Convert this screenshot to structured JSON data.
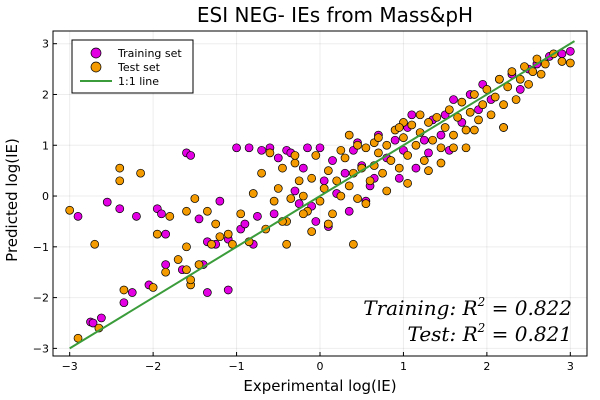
{
  "chart_data": {
    "type": "scatter",
    "title": "ESI NEG- IEs from Mass&pH",
    "xlabel": "Experimental log(IE)",
    "ylabel": "Predicted log(IE)",
    "xlim": [
      -3.2,
      3.2
    ],
    "ylim": [
      -3.15,
      3.25
    ],
    "xticks": [
      -3,
      -2,
      -1,
      0,
      1,
      2,
      3
    ],
    "yticks": [
      -3,
      -2,
      -1,
      0,
      1,
      2,
      3
    ],
    "tick_labels_x": [
      "−3",
      "−2",
      "−1",
      "0",
      "1",
      "2",
      "3"
    ],
    "tick_labels_y": [
      "−3",
      "−2",
      "−1",
      "0",
      "1",
      "2",
      "3"
    ],
    "grid": true,
    "legend_position": "top-left",
    "colors": {
      "training": "#e300e3",
      "test": "#f39b00",
      "line": "#3a9c3a"
    },
    "series": [
      {
        "name": "Training set",
        "kind": "points",
        "points": [
          [
            -2.9,
            -0.4
          ],
          [
            -2.75,
            -2.48
          ],
          [
            -2.72,
            -2.5
          ],
          [
            -2.62,
            -2.4
          ],
          [
            -2.55,
            -0.12
          ],
          [
            -2.4,
            -0.25
          ],
          [
            -2.35,
            -2.1
          ],
          [
            -2.25,
            -1.9
          ],
          [
            -2.2,
            -0.4
          ],
          [
            -2.05,
            -1.75
          ],
          [
            -1.95,
            -0.25
          ],
          [
            -1.9,
            -0.35
          ],
          [
            -1.85,
            -0.75
          ],
          [
            -1.85,
            -1.35
          ],
          [
            -1.65,
            -1.45
          ],
          [
            -1.6,
            0.85
          ],
          [
            -1.55,
            0.8
          ],
          [
            -1.45,
            -0.45
          ],
          [
            -1.4,
            -1.35
          ],
          [
            -1.35,
            -1.9
          ],
          [
            -1.35,
            -0.9
          ],
          [
            -1.25,
            -0.95
          ],
          [
            -1.2,
            -0.1
          ],
          [
            -1.1,
            -1.85
          ],
          [
            -1.1,
            -0.85
          ],
          [
            -1.0,
            0.95
          ],
          [
            -0.95,
            -0.65
          ],
          [
            -0.9,
            -0.55
          ],
          [
            -0.85,
            0.95
          ],
          [
            -0.8,
            -0.95
          ],
          [
            -0.75,
            -0.4
          ],
          [
            -0.7,
            0.9
          ],
          [
            -0.6,
            0.95
          ],
          [
            -0.55,
            -0.35
          ],
          [
            -0.5,
            0.75
          ],
          [
            -0.4,
            0.9
          ],
          [
            -0.35,
            0.85
          ],
          [
            -0.3,
            0.1
          ],
          [
            -0.25,
            -0.15
          ],
          [
            -0.15,
            0.95
          ],
          [
            -0.1,
            -0.2
          ],
          [
            -0.05,
            -0.5
          ],
          [
            0.0,
            0.95
          ],
          [
            0.05,
            0.3
          ],
          [
            0.1,
            -0.6
          ],
          [
            0.2,
            0.05
          ],
          [
            0.3,
            0.45
          ],
          [
            0.35,
            -0.3
          ],
          [
            0.4,
            0.9
          ],
          [
            0.45,
            1.05
          ],
          [
            0.5,
            0.6
          ],
          [
            0.55,
            -0.1
          ],
          [
            0.65,
            0.35
          ],
          [
            0.7,
            1.2
          ],
          [
            0.8,
            0.75
          ],
          [
            0.9,
            1.1
          ],
          [
            1.0,
            0.9
          ],
          [
            1.05,
            1.35
          ],
          [
            1.15,
            0.55
          ],
          [
            1.25,
            1.1
          ],
          [
            1.3,
            0.85
          ],
          [
            1.35,
            1.5
          ],
          [
            1.45,
            1.2
          ],
          [
            1.5,
            1.6
          ],
          [
            1.55,
            0.9
          ],
          [
            1.6,
            1.9
          ],
          [
            1.7,
            1.45
          ],
          [
            1.8,
            2.0
          ],
          [
            1.9,
            1.7
          ],
          [
            1.95,
            2.2
          ],
          [
            2.05,
            1.9
          ],
          [
            2.15,
            2.3
          ],
          [
            2.2,
            1.35
          ],
          [
            2.3,
            2.4
          ],
          [
            2.4,
            2.1
          ],
          [
            2.5,
            2.5
          ],
          [
            2.6,
            2.6
          ],
          [
            2.75,
            2.75
          ],
          [
            2.9,
            2.8
          ],
          [
            3.0,
            2.85
          ],
          [
            -0.2,
            0.55
          ],
          [
            0.15,
            0.7
          ],
          [
            0.6,
            0.2
          ],
          [
            0.95,
            0.35
          ],
          [
            1.1,
            1.6
          ]
        ]
      },
      {
        "name": "Test set",
        "kind": "points",
        "points": [
          [
            -3.0,
            -0.28
          ],
          [
            -2.9,
            -2.8
          ],
          [
            -2.7,
            -0.95
          ],
          [
            -2.65,
            -2.6
          ],
          [
            -2.4,
            0.55
          ],
          [
            -2.4,
            0.3
          ],
          [
            -2.35,
            -1.85
          ],
          [
            -2.15,
            0.45
          ],
          [
            -2.0,
            -1.8
          ],
          [
            -1.95,
            -0.75
          ],
          [
            -1.85,
            -1.5
          ],
          [
            -1.8,
            -0.4
          ],
          [
            -1.7,
            -1.25
          ],
          [
            -1.6,
            -1.0
          ],
          [
            -1.6,
            -1.45
          ],
          [
            -1.6,
            -0.3
          ],
          [
            -1.55,
            -1.75
          ],
          [
            -1.55,
            -1.65
          ],
          [
            -1.5,
            -0.05
          ],
          [
            -1.45,
            -1.35
          ],
          [
            -1.35,
            -0.3
          ],
          [
            -1.3,
            -0.95
          ],
          [
            -1.25,
            -0.55
          ],
          [
            -1.2,
            -0.8
          ],
          [
            -1.1,
            -0.75
          ],
          [
            -1.05,
            -0.95
          ],
          [
            -0.95,
            -0.35
          ],
          [
            -0.85,
            -0.9
          ],
          [
            -0.8,
            0.05
          ],
          [
            -0.7,
            0.45
          ],
          [
            -0.65,
            -0.65
          ],
          [
            -0.55,
            -0.1
          ],
          [
            -0.5,
            0.15
          ],
          [
            -0.45,
            0.55
          ],
          [
            -0.4,
            -0.5
          ],
          [
            -0.35,
            -0.05
          ],
          [
            -0.3,
            0.65
          ],
          [
            -0.25,
            0.3
          ],
          [
            -0.2,
            0.0
          ],
          [
            -0.15,
            -0.3
          ],
          [
            -0.1,
            0.35
          ],
          [
            -0.05,
            0.8
          ],
          [
            0.0,
            -0.1
          ],
          [
            0.05,
            0.15
          ],
          [
            0.1,
            0.5
          ],
          [
            0.15,
            -0.35
          ],
          [
            0.2,
            0.3
          ],
          [
            0.25,
            0.0
          ],
          [
            0.3,
            0.75
          ],
          [
            0.35,
            0.2
          ],
          [
            0.4,
            0.45
          ],
          [
            0.45,
            -0.05
          ],
          [
            0.5,
            0.55
          ],
          [
            0.55,
            0.95
          ],
          [
            0.6,
            0.3
          ],
          [
            0.65,
            0.6
          ],
          [
            0.7,
            0.85
          ],
          [
            0.75,
            0.45
          ],
          [
            0.8,
            1.0
          ],
          [
            0.85,
            0.7
          ],
          [
            0.9,
            1.3
          ],
          [
            0.95,
            0.55
          ],
          [
            1.0,
            1.15
          ],
          [
            1.05,
            0.8
          ],
          [
            1.1,
            1.4
          ],
          [
            1.15,
            1.0
          ],
          [
            1.2,
            1.25
          ],
          [
            1.25,
            0.7
          ],
          [
            1.3,
            1.45
          ],
          [
            1.35,
            1.1
          ],
          [
            1.4,
            1.55
          ],
          [
            1.45,
            0.95
          ],
          [
            1.5,
            1.35
          ],
          [
            1.55,
            1.7
          ],
          [
            1.6,
            1.2
          ],
          [
            1.65,
            1.55
          ],
          [
            1.7,
            1.85
          ],
          [
            1.75,
            1.3
          ],
          [
            1.8,
            1.65
          ],
          [
            1.85,
            2.0
          ],
          [
            1.9,
            1.5
          ],
          [
            1.95,
            1.8
          ],
          [
            2.0,
            2.1
          ],
          [
            2.05,
            1.6
          ],
          [
            2.1,
            1.95
          ],
          [
            2.15,
            2.3
          ],
          [
            2.2,
            1.8
          ],
          [
            2.25,
            2.15
          ],
          [
            2.3,
            2.45
          ],
          [
            2.35,
            1.9
          ],
          [
            2.4,
            2.3
          ],
          [
            2.45,
            2.55
          ],
          [
            2.5,
            2.2
          ],
          [
            2.55,
            2.45
          ],
          [
            2.6,
            2.7
          ],
          [
            2.65,
            2.4
          ],
          [
            2.7,
            2.6
          ],
          [
            2.8,
            2.8
          ],
          [
            2.9,
            2.65
          ],
          [
            3.0,
            2.62
          ],
          [
            -0.6,
            0.85
          ],
          [
            -0.3,
            0.8
          ],
          [
            0.35,
            1.2
          ],
          [
            0.65,
            1.05
          ],
          [
            -0.4,
            -0.95
          ],
          [
            0.4,
            -0.95
          ],
          [
            0.1,
            -0.55
          ],
          [
            -0.1,
            -0.7
          ],
          [
            0.8,
            0.1
          ],
          [
            1.05,
            0.25
          ],
          [
            1.3,
            0.5
          ],
          [
            1.45,
            0.65
          ],
          [
            2.2,
            1.35
          ],
          [
            1.75,
            0.95
          ],
          [
            1.0,
            1.45
          ],
          [
            0.95,
            1.35
          ],
          [
            0.7,
            1.15
          ],
          [
            1.2,
            1.6
          ],
          [
            -0.45,
            -0.5
          ],
          [
            -0.2,
            -0.35
          ],
          [
            0.55,
            -0.15
          ],
          [
            0.25,
            0.9
          ],
          [
            0.45,
            1.0
          ],
          [
            1.6,
            0.95
          ],
          [
            1.85,
            1.3
          ]
        ]
      },
      {
        "name": "1:1 line",
        "kind": "line",
        "points": [
          [
            -3.0,
            -3.0
          ],
          [
            3.05,
            3.05
          ]
        ]
      }
    ],
    "legend": [
      {
        "label": "Training set",
        "series": 0
      },
      {
        "label": "Test set",
        "series": 1
      },
      {
        "label": "1:1 line",
        "series": 2
      }
    ],
    "annotations": {
      "training": {
        "prefix": "Training: R",
        "sup": "2",
        "suffix": " = 0.822"
      },
      "test": {
        "prefix": "Test: R",
        "sup": "2",
        "suffix": " = 0.821"
      }
    }
  }
}
